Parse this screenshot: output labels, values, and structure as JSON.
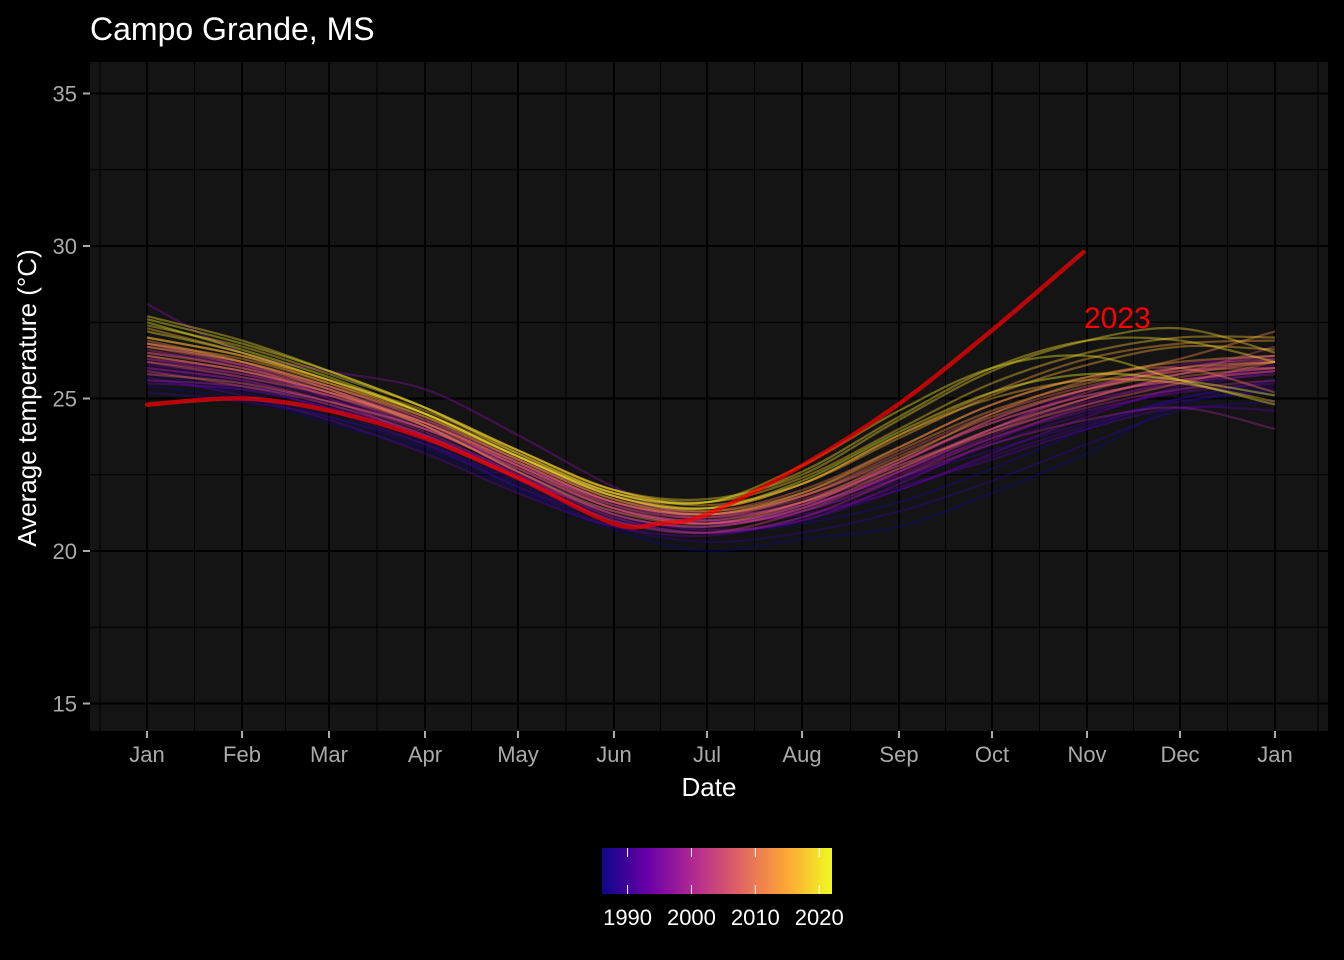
{
  "chart_data": {
    "type": "line",
    "title": "Campo Grande, MS",
    "xlabel": "Date",
    "ylabel": "Average temperature (°C)",
    "ylim": [
      14,
      36
    ],
    "y_ticks": [
      15,
      20,
      25,
      30,
      35
    ],
    "x_ticks": [
      "Jan",
      "Feb",
      "Mar",
      "Apr",
      "May",
      "Jun",
      "Jul",
      "Aug",
      "Sep",
      "Oct",
      "Nov",
      "Dec",
      "Jan"
    ],
    "grid": true,
    "legend_position": "bottom",
    "legend": {
      "type": "colorbar",
      "min": 1986,
      "max": 2022,
      "ticks": [
        1990,
        2000,
        2010,
        2020
      ],
      "colors": [
        "#0d0887",
        "#6a00a8",
        "#b12a90",
        "#e16462",
        "#fca636",
        "#f0f921"
      ]
    },
    "colors": {
      "background": "#000000",
      "panel": "#141414",
      "grid": "#000000",
      "highlight": "#ff0000",
      "text": "#ffffff",
      "tick_text": "#aaaaaa"
    },
    "highlight_series": {
      "name": "2023",
      "x": [
        "2023-01-01",
        "2023-02-01",
        "2023-03-01",
        "2023-04-01",
        "2023-05-01",
        "2023-06-01",
        "2023-06-16",
        "2023-07-01",
        "2023-08-01",
        "2023-09-01",
        "2023-10-01",
        "2023-10-31"
      ],
      "y": [
        24.8,
        25.0,
        24.6,
        23.7,
        22.4,
        20.9,
        20.9,
        21.2,
        22.8,
        24.8,
        27.2,
        29.8
      ]
    },
    "series": [
      {
        "year": 1986,
        "values": [
          25.4,
          25.0,
          24.2,
          23.3,
          22.0,
          20.7,
          20.0,
          20.4,
          20.8,
          21.9,
          23.2,
          24.8,
          25.2
        ]
      },
      {
        "year": 1987,
        "values": [
          25.6,
          25.2,
          24.4,
          23.4,
          22.2,
          21.0,
          20.6,
          20.9,
          21.6,
          22.7,
          24.0,
          25.0,
          25.4
        ]
      },
      {
        "year": 1988,
        "values": [
          25.8,
          25.3,
          24.7,
          23.6,
          22.1,
          20.8,
          20.3,
          20.6,
          21.3,
          22.3,
          23.5,
          24.6,
          24.9
        ]
      },
      {
        "year": 1989,
        "values": [
          25.2,
          24.9,
          24.4,
          23.5,
          22.3,
          21.1,
          20.8,
          21.5,
          22.4,
          23.3,
          24.2,
          25.0,
          25.6
        ]
      },
      {
        "year": 1990,
        "values": [
          25.9,
          25.5,
          24.6,
          23.5,
          22.1,
          21.0,
          20.6,
          21.0,
          22.0,
          23.1,
          24.1,
          24.9,
          25.3
        ]
      },
      {
        "year": 1991,
        "values": [
          26.0,
          25.6,
          24.8,
          23.8,
          22.6,
          21.4,
          20.9,
          21.3,
          22.3,
          23.5,
          24.5,
          25.3,
          25.9
        ]
      },
      {
        "year": 1992,
        "values": [
          25.7,
          25.1,
          24.3,
          23.2,
          21.9,
          20.8,
          20.5,
          21.1,
          22.1,
          23.0,
          24.0,
          24.7,
          24.6
        ]
      },
      {
        "year": 1993,
        "values": [
          26.1,
          25.7,
          25.0,
          24.0,
          22.8,
          21.6,
          21.0,
          21.2,
          22.0,
          23.2,
          24.4,
          25.4,
          26.1
        ]
      },
      {
        "year": 1994,
        "values": [
          25.5,
          25.3,
          24.7,
          23.8,
          22.5,
          21.2,
          20.8,
          21.4,
          22.6,
          23.7,
          24.6,
          25.2,
          25.5
        ]
      },
      {
        "year": 1995,
        "values": [
          26.3,
          25.8,
          25.2,
          24.1,
          22.6,
          21.2,
          20.7,
          21.0,
          22.2,
          23.6,
          24.8,
          25.6,
          26.0
        ]
      },
      {
        "year": 1996,
        "values": [
          28.1,
          26.5,
          25.9,
          25.3,
          23.8,
          22.1,
          21.0,
          21.4,
          22.6,
          24.0,
          25.3,
          26.1,
          26.4
        ]
      },
      {
        "year": 1997,
        "values": [
          26.5,
          26.1,
          25.4,
          24.3,
          23.0,
          21.8,
          21.2,
          21.5,
          22.5,
          23.8,
          24.9,
          25.5,
          25.8
        ]
      },
      {
        "year": 1998,
        "values": [
          26.8,
          26.1,
          25.0,
          23.7,
          22.4,
          21.3,
          21.0,
          21.6,
          22.8,
          24.0,
          25.0,
          25.8,
          26.3
        ]
      },
      {
        "year": 1999,
        "values": [
          25.6,
          25.4,
          24.9,
          24.0,
          22.8,
          21.5,
          20.9,
          21.3,
          22.4,
          23.5,
          24.3,
          24.7,
          24.0
        ]
      },
      {
        "year": 2000,
        "values": [
          26.0,
          25.6,
          24.9,
          23.9,
          22.5,
          21.1,
          20.6,
          21.1,
          22.4,
          23.7,
          24.7,
          25.3,
          25.6
        ]
      },
      {
        "year": 2001,
        "values": [
          26.3,
          25.9,
          25.1,
          24.0,
          22.7,
          21.4,
          20.9,
          21.5,
          22.9,
          24.2,
          25.1,
          25.6,
          25.9
        ]
      },
      {
        "year": 2002,
        "values": [
          26.6,
          26.0,
          25.3,
          24.2,
          22.8,
          21.6,
          21.2,
          21.7,
          22.9,
          24.3,
          25.3,
          26.0,
          26.4
        ]
      },
      {
        "year": 2003,
        "values": [
          26.2,
          25.8,
          25.1,
          24.2,
          22.9,
          21.6,
          21.1,
          21.6,
          22.7,
          24.0,
          25.2,
          26.0,
          26.3
        ]
      },
      {
        "year": 2004,
        "values": [
          25.9,
          25.4,
          24.8,
          23.8,
          22.4,
          21.0,
          20.6,
          21.3,
          22.6,
          23.9,
          25.0,
          25.8,
          26.7
        ]
      },
      {
        "year": 2005,
        "values": [
          26.4,
          25.9,
          25.2,
          24.2,
          22.9,
          21.6,
          21.2,
          21.8,
          23.0,
          24.2,
          25.1,
          25.6,
          25.9
        ]
      },
      {
        "year": 2006,
        "values": [
          26.7,
          26.1,
          25.3,
          24.2,
          22.8,
          21.4,
          20.9,
          21.5,
          22.9,
          24.3,
          25.3,
          25.9,
          26.2
        ]
      },
      {
        "year": 2007,
        "values": [
          26.2,
          25.7,
          25.1,
          24.1,
          22.8,
          21.5,
          21.1,
          21.8,
          23.2,
          24.5,
          25.4,
          25.9,
          26.0
        ]
      },
      {
        "year": 2008,
        "values": [
          25.8,
          25.5,
          24.9,
          24.0,
          22.7,
          21.4,
          21.0,
          21.6,
          22.8,
          23.9,
          24.8,
          25.5,
          26.2
        ]
      },
      {
        "year": 2009,
        "values": [
          26.5,
          26.0,
          25.2,
          24.1,
          22.6,
          21.2,
          20.8,
          21.4,
          22.7,
          24.0,
          25.0,
          25.7,
          26.0
        ]
      },
      {
        "year": 2010,
        "values": [
          26.8,
          26.2,
          25.4,
          24.3,
          23.0,
          21.7,
          21.3,
          22.0,
          23.4,
          24.8,
          25.7,
          26.0,
          25.2
        ]
      },
      {
        "year": 2011,
        "values": [
          26.4,
          25.9,
          25.2,
          24.2,
          22.9,
          21.6,
          21.2,
          21.8,
          23.1,
          24.4,
          25.3,
          25.8,
          26.2
        ]
      },
      {
        "year": 2012,
        "values": [
          26.9,
          26.2,
          25.3,
          24.1,
          22.6,
          21.3,
          20.9,
          21.6,
          23.0,
          24.5,
          25.6,
          26.3,
          27.2
        ]
      },
      {
        "year": 2013,
        "values": [
          26.7,
          26.2,
          25.4,
          24.4,
          23.1,
          21.8,
          21.3,
          21.9,
          23.3,
          24.6,
          25.5,
          26.0,
          26.2
        ]
      },
      {
        "year": 2014,
        "values": [
          27.0,
          26.4,
          25.5,
          24.4,
          23.0,
          21.7,
          21.2,
          21.9,
          23.4,
          24.8,
          25.7,
          26.2,
          26.4
        ]
      },
      {
        "year": 2015,
        "values": [
          26.8,
          26.3,
          25.5,
          24.5,
          23.2,
          21.9,
          21.4,
          22.2,
          23.8,
          25.2,
          26.3,
          26.8,
          26.9
        ]
      },
      {
        "year": 2016,
        "values": [
          27.3,
          26.5,
          25.6,
          24.6,
          23.3,
          22.0,
          21.5,
          22.2,
          23.7,
          25.1,
          26.1,
          26.7,
          26.6
        ]
      },
      {
        "year": 2017,
        "values": [
          27.0,
          26.4,
          25.6,
          24.5,
          23.1,
          21.8,
          21.4,
          22.2,
          23.8,
          25.0,
          25.6,
          25.5,
          24.9
        ]
      },
      {
        "year": 2018,
        "values": [
          27.4,
          26.7,
          25.8,
          24.7,
          23.3,
          22.0,
          21.6,
          22.4,
          24.0,
          25.5,
          26.5,
          27.0,
          27.0
        ]
      },
      {
        "year": 2019,
        "values": [
          27.7,
          26.9,
          25.9,
          24.7,
          23.3,
          22.0,
          21.7,
          22.5,
          24.3,
          25.9,
          26.9,
          27.3,
          26.5
        ]
      },
      {
        "year": 2020,
        "values": [
          27.2,
          26.5,
          25.6,
          24.5,
          23.1,
          21.9,
          21.6,
          22.6,
          24.4,
          26.0,
          26.9,
          26.9,
          26.2
        ]
      },
      {
        "year": 2021,
        "values": [
          27.6,
          26.8,
          25.9,
          24.7,
          23.2,
          21.9,
          21.6,
          22.8,
          24.6,
          26.0,
          26.4,
          25.6,
          24.8
        ]
      },
      {
        "year": 2022,
        "values": [
          27.5,
          26.6,
          25.7,
          24.5,
          23.1,
          21.8,
          21.4,
          22.3,
          23.9,
          25.2,
          25.8,
          25.6,
          25.1
        ]
      }
    ]
  }
}
